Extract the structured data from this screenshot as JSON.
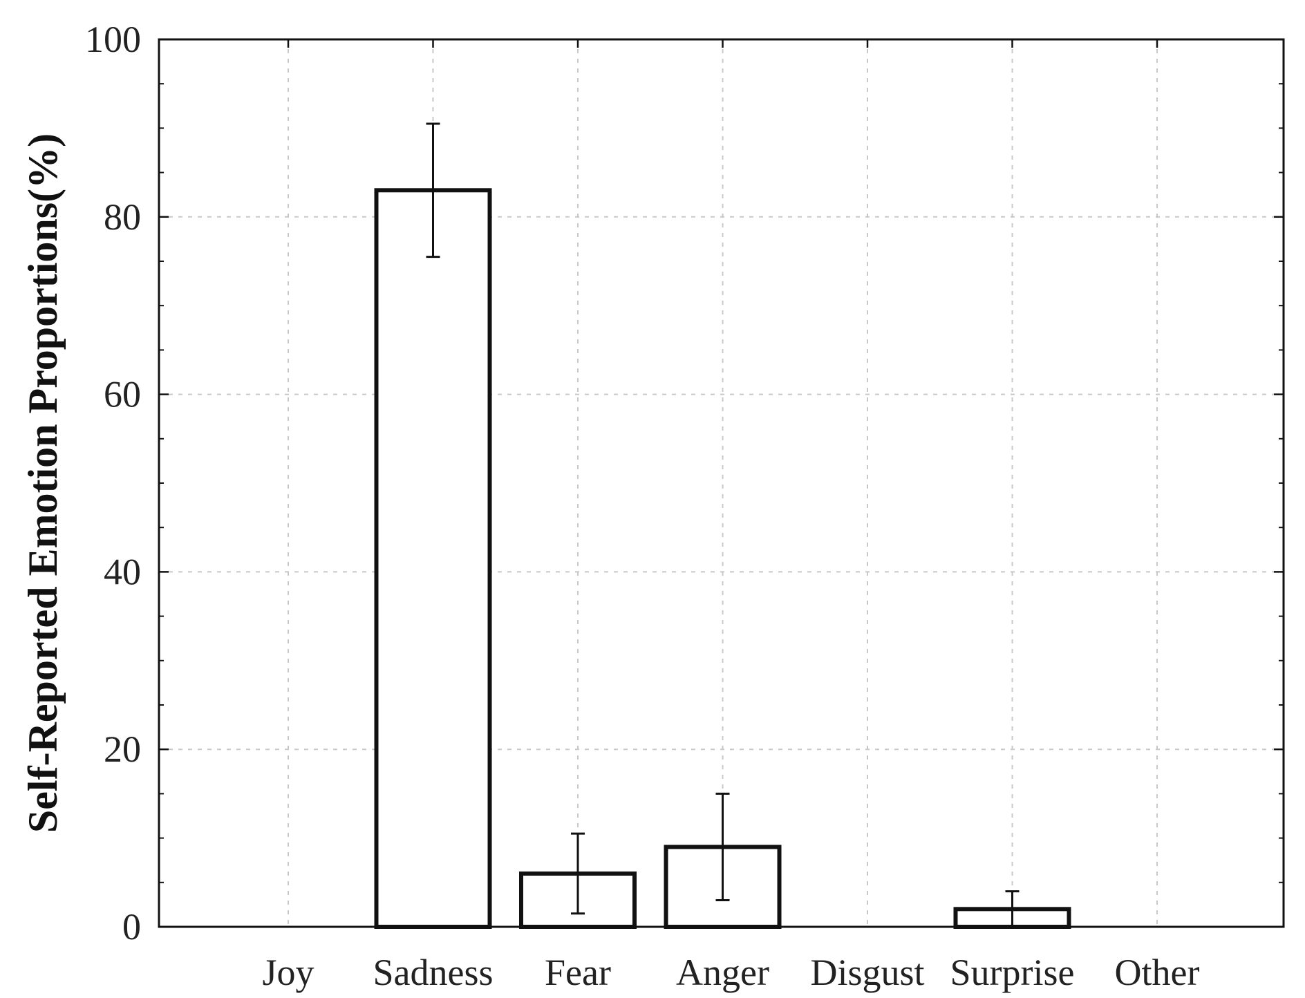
{
  "chart_data": {
    "type": "bar",
    "title": "",
    "xlabel": "",
    "ylabel": "Self-Reported Emotion Proportions(%)",
    "categories": [
      "Joy",
      "Sadness",
      "Fear",
      "Anger",
      "Disgust",
      "Surprise",
      "Other"
    ],
    "values": [
      0,
      83,
      6,
      9,
      0,
      2,
      0
    ],
    "error_low": [
      0,
      75.5,
      1.5,
      3,
      0,
      0,
      0
    ],
    "error_high": [
      0,
      90.5,
      10.5,
      15,
      0,
      4,
      0
    ],
    "ylim": [
      0,
      100
    ],
    "yticks": [
      0,
      20,
      40,
      60,
      80,
      100
    ],
    "grid": true,
    "colors": {
      "bar_fill": "#ffffff",
      "bar_edge": "#111111",
      "grid": "#c8c8c8",
      "axis": "#111111"
    }
  }
}
